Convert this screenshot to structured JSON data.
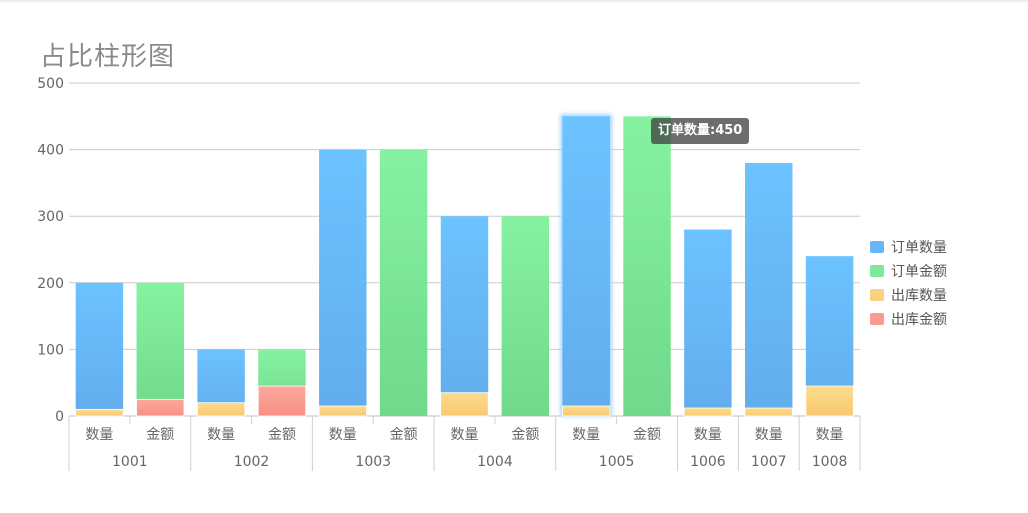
{
  "title": "占比柱形图",
  "tooltip": {
    "text": "订单数量:450"
  },
  "legend": [
    {
      "label": "订单数量",
      "color": "#66b6f8"
    },
    {
      "label": "订单金额",
      "color": "#7ee89b"
    },
    {
      "label": "出库数量",
      "color": "#fbd07f"
    },
    {
      "label": "出库金额",
      "color": "#f99b91"
    }
  ],
  "chart_data": {
    "type": "bar",
    "title": "占比柱形图",
    "ylim": [
      0,
      500
    ],
    "yticks": [
      0,
      100,
      200,
      300,
      400,
      500
    ],
    "grid": true,
    "legend_position": "right",
    "groups": [
      {
        "name": "1001",
        "bars": [
          {
            "label": "数量",
            "base": {
              "series": "订单数量",
              "value": 200
            },
            "overlay": {
              "series": "出库数量",
              "value": 10
            }
          },
          {
            "label": "金额",
            "base": {
              "series": "订单金额",
              "value": 200
            },
            "overlay": {
              "series": "出库金额",
              "value": 25
            }
          }
        ]
      },
      {
        "name": "1002",
        "bars": [
          {
            "label": "数量",
            "base": {
              "series": "订单数量",
              "value": 100
            },
            "overlay": {
              "series": "出库数量",
              "value": 20
            }
          },
          {
            "label": "金额",
            "base": {
              "series": "订单金额",
              "value": 100
            },
            "overlay": {
              "series": "出库金额",
              "value": 45
            }
          }
        ]
      },
      {
        "name": "1003",
        "bars": [
          {
            "label": "数量",
            "base": {
              "series": "订单数量",
              "value": 400
            },
            "overlay": {
              "series": "出库数量",
              "value": 15
            }
          },
          {
            "label": "金额",
            "base": {
              "series": "订单金额",
              "value": 400
            },
            "overlay": null
          }
        ]
      },
      {
        "name": "1004",
        "bars": [
          {
            "label": "数量",
            "base": {
              "series": "订单数量",
              "value": 300
            },
            "overlay": {
              "series": "出库数量",
              "value": 35
            }
          },
          {
            "label": "金额",
            "base": {
              "series": "订单金额",
              "value": 300
            },
            "overlay": null
          }
        ]
      },
      {
        "name": "1005",
        "bars": [
          {
            "label": "数量",
            "base": {
              "series": "订单数量",
              "value": 450
            },
            "overlay": {
              "series": "出库数量",
              "value": 15
            },
            "highlighted": true
          },
          {
            "label": "金额",
            "base": {
              "series": "订单金额",
              "value": 450
            },
            "overlay": null
          }
        ]
      },
      {
        "name": "1006",
        "bars": [
          {
            "label": "数量",
            "base": {
              "series": "订单数量",
              "value": 280
            },
            "overlay": {
              "series": "出库数量",
              "value": 12
            }
          }
        ]
      },
      {
        "name": "1007",
        "bars": [
          {
            "label": "数量",
            "base": {
              "series": "订单数量",
              "value": 380
            },
            "overlay": {
              "series": "出库数量",
              "value": 12
            }
          }
        ]
      },
      {
        "name": "1008",
        "bars": [
          {
            "label": "数量",
            "base": {
              "series": "订单数量",
              "value": 240
            },
            "overlay": {
              "series": "出库数量",
              "value": 45
            }
          }
        ]
      }
    ]
  }
}
